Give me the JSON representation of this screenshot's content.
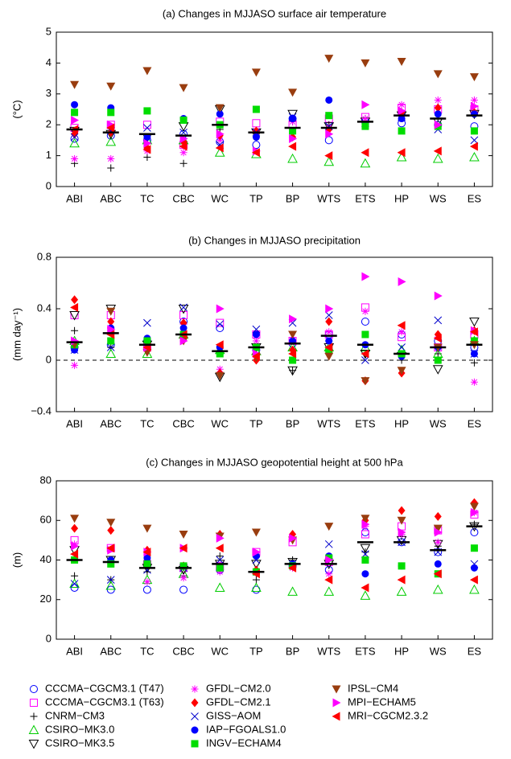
{
  "chart_data": [
    {
      "type": "scatter",
      "title": "(a) Changes in MJJASO surface air temperature",
      "y_label": "(°C)",
      "categories": [
        "ABI",
        "ABC",
        "TC",
        "CBC",
        "WC",
        "TP",
        "BP",
        "WTS",
        "ETS",
        "HP",
        "WS",
        "ES"
      ],
      "ylim": [
        0,
        5
      ],
      "yticks": [
        0,
        1,
        2,
        3,
        4,
        5
      ],
      "series": [
        {
          "name": "CCCMA−CGCM3.1 (T47)",
          "color": "#0000ff",
          "marker": "circle-open",
          "values": [
            1.55,
            1.65,
            1.5,
            1.7,
            1.45,
            1.35,
            2.2,
            1.5,
            2.1,
            2.05,
            2.0,
            1.95
          ]
        },
        {
          "name": "CCCMA−CGCM3.1 (T63)",
          "color": "#ff00ff",
          "marker": "square-open",
          "values": [
            1.9,
            2.0,
            2.0,
            1.35,
            2.1,
            2.05,
            2.0,
            2.2,
            2.25,
            2.55,
            2.5,
            2.5
          ]
        },
        {
          "name": "CNRM−CM3",
          "color": "#000000",
          "marker": "plus",
          "values": [
            0.75,
            0.6,
            0.95,
            0.75,
            1.85,
            1.7,
            2.1,
            2.0,
            2.2,
            2.35,
            2.2,
            2.35
          ]
        },
        {
          "name": "CSIRO−MK3.0",
          "color": "#00cc00",
          "marker": "triangle-up-open",
          "values": [
            1.4,
            1.45,
            1.5,
            1.5,
            1.1,
            1.05,
            0.9,
            0.8,
            0.75,
            0.95,
            0.9,
            0.95
          ]
        },
        {
          "name": "CSIRO−MK3.5",
          "color": "#000000",
          "marker": "triangle-down-open",
          "values": [
            1.8,
            1.7,
            1.6,
            1.95,
            2.5,
            1.75,
            2.35,
            1.95,
            2.1,
            2.3,
            2.1,
            2.35
          ]
        },
        {
          "name": "GFDL−CM2.0",
          "color": "#ff00ff",
          "marker": "asterisk",
          "values": [
            0.9,
            0.9,
            1.15,
            1.1,
            1.5,
            1.8,
            2.1,
            1.9,
            2.2,
            2.65,
            2.8,
            2.8
          ]
        },
        {
          "name": "GFDL−CM2.1",
          "color": "#ff0000",
          "marker": "diamond",
          "values": [
            1.7,
            1.75,
            1.25,
            1.45,
            1.65,
            1.8,
            1.6,
            1.85,
            2.0,
            2.4,
            2.55,
            2.4
          ]
        },
        {
          "name": "GISS−AOM",
          "color": "#0000cc",
          "marker": "x",
          "values": [
            1.6,
            1.8,
            1.9,
            1.75,
            1.35,
            1.75,
            2.25,
            1.95,
            2.05,
            2.25,
            1.85,
            1.5
          ]
        },
        {
          "name": "IAP−FGOALS1.0",
          "color": "#0000ff",
          "marker": "circle",
          "values": [
            2.65,
            2.55,
            1.6,
            2.2,
            2.35,
            1.6,
            2.2,
            2.8,
            2.0,
            2.2,
            2.35,
            2.35
          ]
        },
        {
          "name": "INGV−ECHAM4",
          "color": "#00dd00",
          "marker": "square",
          "values": [
            2.4,
            2.4,
            2.45,
            2.15,
            2.0,
            2.5,
            1.8,
            2.3,
            1.95,
            1.8,
            1.95,
            1.8
          ]
        },
        {
          "name": "IPSL−CM4",
          "color": "#993d0f",
          "marker": "triangle-down",
          "values": [
            3.3,
            3.25,
            3.75,
            3.2,
            2.55,
            3.7,
            3.05,
            4.15,
            4.0,
            4.05,
            3.65,
            3.55
          ]
        },
        {
          "name": "MPI−ECHAM5",
          "color": "#ff00ff",
          "marker": "triangle-right",
          "values": [
            2.15,
            2.0,
            1.4,
            1.55,
            1.7,
            1.15,
            1.55,
            1.7,
            2.65,
            2.45,
            2.0,
            2.6
          ]
        },
        {
          "name": "MRI−CGCM2.3.2",
          "color": "#ff0000",
          "marker": "triangle-left",
          "values": [
            1.85,
            1.9,
            1.2,
            1.3,
            1.25,
            1.1,
            1.3,
            1.0,
            1.1,
            1.1,
            1.15,
            1.3
          ]
        }
      ],
      "mean": [
        1.85,
        1.75,
        1.7,
        1.65,
        2.0,
        1.75,
        1.9,
        1.9,
        2.1,
        2.3,
        2.2,
        2.3
      ]
    },
    {
      "type": "scatter",
      "title": "(b) Changes in MJJASO precipitation",
      "y_label": "(mm day⁻¹)",
      "ylim": [
        -0.4,
        0.8
      ],
      "yticks": [
        {
          "value": -0.4,
          "label": "−0.4"
        },
        0,
        0.4,
        0.8
      ],
      "zero_line": true,
      "series": [
        {
          "values": [
            0.1,
            0.12,
            0.15,
            0.3,
            0.25,
            0.08,
            0.13,
            0.2,
            0.3,
            0.2,
            0.15,
            0.1
          ]
        },
        {
          "values": [
            0.35,
            0.35,
            0.1,
            0.35,
            0.29,
            0.2,
            0.15,
            0.2,
            0.41,
            0.18,
            0.1,
            0.2
          ]
        },
        {
          "values": [
            0.23,
            0.1,
            0.08,
            0.15,
            0.05,
            0.1,
            -0.08,
            0.05,
            0.05,
            0.0,
            0.05,
            -0.02
          ]
        },
        {
          "values": [
            0.15,
            0.05,
            0.05,
            0.2,
            0.08,
            0.07,
            0.1,
            0.1,
            0.1,
            0.08,
            0.05,
            0.15
          ]
        },
        {
          "values": [
            0.35,
            0.4,
            0.12,
            0.4,
            -0.13,
            0.1,
            -0.08,
            0.1,
            0.05,
            0.03,
            -0.07,
            0.3
          ]
        },
        {
          "values": [
            -0.04,
            0.23,
            0.1,
            0.28,
            -0.07,
            0.15,
            0.15,
            0.22,
            0.38,
            0.22,
            0.18,
            -0.17
          ]
        },
        {
          "values": [
            0.47,
            0.3,
            0.13,
            0.29,
            -0.1,
            0.0,
            0.08,
            0.3,
            -0.16,
            -0.1,
            0.2,
            0.23
          ]
        },
        {
          "values": [
            0.08,
            0.1,
            0.29,
            0.41,
            0.28,
            0.24,
            0.29,
            0.35,
            0.0,
            0.1,
            0.31,
            0.05
          ]
        },
        {
          "values": [
            0.08,
            0.25,
            0.17,
            0.25,
            0.1,
            0.2,
            0.15,
            0.15,
            0.12,
            0.03,
            0.1,
            0.05
          ]
        },
        {
          "values": [
            0.12,
            0.15,
            0.15,
            0.2,
            0.05,
            0.1,
            0.0,
            0.08,
            0.2,
            0.05,
            0.0,
            0.15
          ]
        },
        {
          "values": [
            0.12,
            0.38,
            0.06,
            0.15,
            -0.12,
            0.02,
            0.2,
            0.03,
            -0.16,
            -0.08,
            0.1,
            0.12
          ]
        },
        {
          "values": [
            0.15,
            0.24,
            0.1,
            0.15,
            0.4,
            0.05,
            0.32,
            0.4,
            0.65,
            0.61,
            0.5,
            0.23
          ]
        },
        {
          "values": [
            0.41,
            0.2,
            0.1,
            0.2,
            0.12,
            0.03,
            0.05,
            0.1,
            0.05,
            0.27,
            0.17,
            0.22
          ]
        }
      ],
      "mean": [
        0.14,
        0.21,
        0.12,
        0.2,
        0.07,
        0.1,
        0.13,
        0.19,
        0.12,
        0.05,
        0.1,
        0.12
      ]
    },
    {
      "type": "scatter",
      "title": "(c) Changes in MJJASO geopotential height at 500 hPa",
      "y_label": "(m)",
      "ylim": [
        0,
        80
      ],
      "yticks": [
        0,
        20,
        40,
        60,
        80
      ],
      "series": [
        {
          "values": [
            26,
            25,
            25,
            25,
            35,
            25,
            37,
            35,
            54,
            49,
            44,
            54
          ]
        },
        {
          "values": [
            50,
            46,
            38,
            36,
            37,
            44,
            49,
            39,
            53,
            57,
            55,
            63
          ]
        },
        {
          "values": [
            32,
            30,
            34,
            32,
            42,
            30,
            40,
            40,
            44,
            52,
            47,
            58
          ]
        },
        {
          "values": [
            28,
            27,
            30,
            33,
            26,
            26,
            24,
            24,
            22,
            24,
            25,
            25
          ]
        },
        {
          "values": [
            45,
            40,
            36,
            35,
            38,
            38,
            39,
            38,
            46,
            50,
            48,
            57
          ]
        },
        {
          "values": [
            48,
            38,
            29,
            31,
            34,
            34,
            36,
            33,
            57,
            53,
            49,
            64
          ]
        },
        {
          "values": [
            56,
            55,
            45,
            37,
            53,
            35,
            53,
            41,
            60,
            65,
            62,
            69
          ]
        },
        {
          "values": [
            28,
            30,
            35,
            36,
            40,
            40,
            38,
            48,
            43,
            49,
            44,
            38
          ]
        },
        {
          "values": [
            40,
            40,
            41,
            37,
            36,
            42,
            38,
            42,
            33,
            37,
            38,
            36
          ]
        },
        {
          "values": [
            40,
            38,
            38,
            37,
            36,
            34,
            37,
            41,
            40,
            37,
            33,
            46
          ]
        },
        {
          "values": [
            61,
            59,
            56,
            53,
            52,
            54,
            50,
            57,
            61,
            60,
            56,
            67
          ]
        },
        {
          "values": [
            47,
            45,
            44,
            46,
            51,
            44,
            51,
            40,
            58,
            54,
            54,
            64
          ]
        },
        {
          "values": [
            43,
            46,
            44,
            46,
            46,
            33,
            36,
            30,
            26,
            30,
            33,
            30
          ]
        }
      ],
      "mean": [
        40,
        39,
        36,
        36,
        38,
        34,
        38,
        38,
        49,
        49,
        45,
        57
      ]
    }
  ]
}
